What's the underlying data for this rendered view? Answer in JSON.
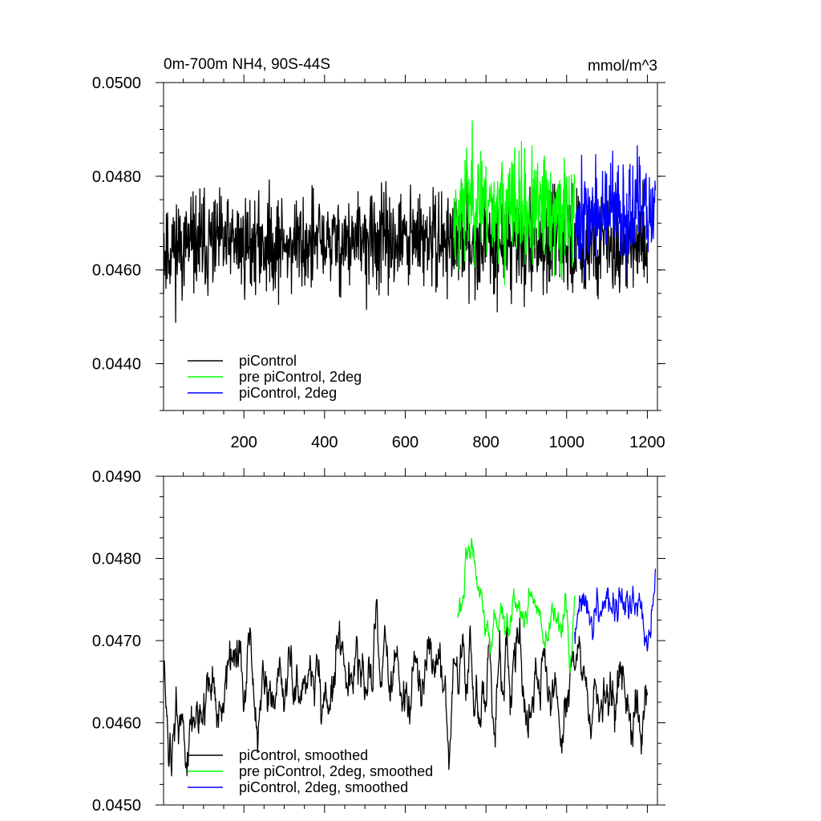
{
  "chart_data": [
    {
      "type": "line",
      "title_left": "0m-700m NH4, 90S-44S",
      "title_right": "mmol/m^3",
      "xlim": [
        1,
        1225
      ],
      "ylim": [
        0.043,
        0.05
      ],
      "x_ticks": [
        200,
        400,
        600,
        800,
        1000,
        1200
      ],
      "x_tick_labels": [
        "200",
        "400",
        "600",
        "800",
        "1000",
        "1200"
      ],
      "y_ticks": [
        0.044,
        0.046,
        0.048,
        0.05
      ],
      "y_tick_labels": [
        "0.0440",
        "0.0460",
        "0.0480",
        "0.0500"
      ],
      "legend_position": "bottom-left",
      "series": [
        {
          "name": "piControl",
          "color": "#000000",
          "x_range": [
            1,
            1200
          ],
          "mean": 0.04655,
          "spread": 0.00075,
          "smooth": 1,
          "seed": 11,
          "min_val": 0.0437,
          "max_val": 0.04895,
          "shape_x": [
            1,
            100,
            300,
            500,
            700,
            800,
            1000,
            1200
          ],
          "shape_y": [
            0.04645,
            0.04655,
            0.04655,
            0.0466,
            0.04665,
            0.0466,
            0.0466,
            0.0465
          ]
        },
        {
          "name": "pre piControl, 2deg",
          "color": "#00ff00",
          "x_range": [
            720,
            1020
          ],
          "mean": 0.04725,
          "spread": 0.00085,
          "smooth": 1,
          "seed": 23,
          "min_val": 0.0449,
          "max_val": 0.04945,
          "shape_x": [
            720,
            760,
            850,
            1020
          ],
          "shape_y": [
            0.047,
            0.0476,
            0.04725,
            0.04715
          ]
        },
        {
          "name": "piControl, 2deg",
          "color": "#0000ff",
          "x_range": [
            1020,
            1220
          ],
          "mean": 0.0472,
          "spread": 0.00075,
          "smooth": 1,
          "seed": 37,
          "min_val": 0.0454,
          "max_val": 0.04945,
          "shape_x": [
            1020,
            1100,
            1220
          ],
          "shape_y": [
            0.0471,
            0.0472,
            0.04725
          ]
        }
      ]
    },
    {
      "type": "line",
      "xlim": [
        1,
        1225
      ],
      "ylim": [
        0.045,
        0.049
      ],
      "x_ticks": [
        200,
        400,
        600,
        800,
        1000,
        1200
      ],
      "y_ticks": [
        0.045,
        0.046,
        0.047,
        0.048,
        0.049
      ],
      "y_tick_labels": [
        "0.0450",
        "0.0460",
        "0.0470",
        "0.0480",
        "0.0490"
      ],
      "legend_position": "bottom-left",
      "series": [
        {
          "name": "piControl, smoothed",
          "color": "#000000",
          "x_range": [
            1,
            1200
          ],
          "mean": 0.0465,
          "spread": 0.00055,
          "smooth": 5,
          "seed": 51,
          "min_val": 0.0451,
          "max_val": 0.0475,
          "shape_x": [
            1,
            40,
            100,
            300,
            500,
            700,
            900,
            1200
          ],
          "shape_y": [
            0.0462,
            0.0458,
            0.04635,
            0.04645,
            0.0466,
            0.0465,
            0.0465,
            0.0463
          ]
        },
        {
          "name": "pre piControl, 2deg, smoothed",
          "color": "#00ff00",
          "x_range": [
            730,
            1020
          ],
          "mean": 0.0473,
          "spread": 0.00035,
          "smooth": 5,
          "seed": 63,
          "min_val": 0.0463,
          "max_val": 0.0485,
          "shape_x": [
            730,
            750,
            800,
            900,
            1020
          ],
          "shape_y": [
            0.047,
            0.0482,
            0.04735,
            0.0473,
            0.04705
          ]
        },
        {
          "name": "piControl, 2deg, smoothed",
          "color": "#0000ff",
          "x_range": [
            1020,
            1220
          ],
          "mean": 0.04735,
          "spread": 0.0003,
          "smooth": 5,
          "seed": 77,
          "min_val": 0.0467,
          "max_val": 0.048,
          "shape_x": [
            1020,
            1100,
            1220
          ],
          "shape_y": [
            0.0473,
            0.04745,
            0.0473
          ]
        }
      ]
    }
  ]
}
